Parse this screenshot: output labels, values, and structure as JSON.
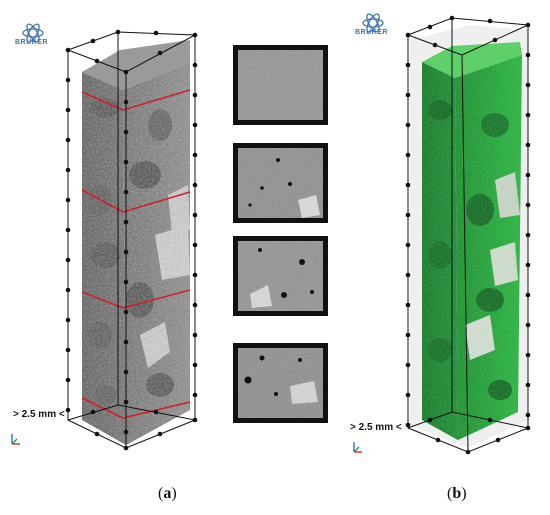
{
  "logo": {
    "text": "BRUKER",
    "color": "#3f73b0"
  },
  "panels": [
    {
      "scale_label": "> 2.5 mm <",
      "caption": "(a)",
      "caption_letter": "a"
    },
    {
      "scale_label": "> 2.5 mm <",
      "caption": "(b)",
      "caption_letter": "b"
    }
  ],
  "colors": {
    "cut_lines": "#d0202a",
    "segmentation_green": "#1faa32",
    "specimen_gray": "#7a7a7a"
  }
}
